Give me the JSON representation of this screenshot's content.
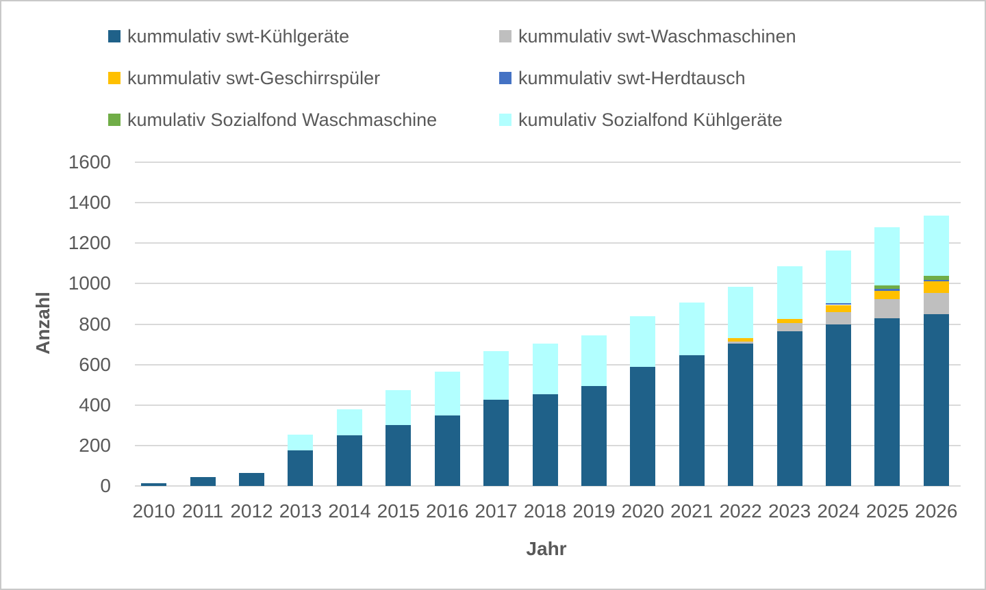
{
  "colors": {
    "background": "#ffffff",
    "frame_border": "#c9c9c9",
    "gridline": "#d9d9d9",
    "axis_text": "#595959"
  },
  "chart_data": {
    "type": "bar",
    "stacked": true,
    "title": "",
    "xlabel": "Jahr",
    "ylabel": "Anzahl",
    "ylim": [
      0,
      1600
    ],
    "yticks": [
      0,
      200,
      400,
      600,
      800,
      1000,
      1200,
      1400,
      1600
    ],
    "grid": true,
    "legend_position": "top",
    "categories": [
      "2010",
      "2011",
      "2012",
      "2013",
      "2014",
      "2015",
      "2016",
      "2017",
      "2018",
      "2019",
      "2020",
      "2021",
      "2022",
      "2023",
      "2024",
      "2025",
      "2026"
    ],
    "series": [
      {
        "name": "kummulativ swt-Kühlgeräte",
        "color": "#1F6189",
        "values": [
          15,
          45,
          65,
          175,
          250,
          300,
          350,
          425,
          455,
          495,
          590,
          645,
          705,
          765,
          800,
          830,
          850
        ]
      },
      {
        "name": "kummulativ swt-Waschmaschinen",
        "color": "#BFBFBF",
        "values": [
          0,
          0,
          0,
          0,
          0,
          0,
          0,
          0,
          0,
          0,
          0,
          0,
          10,
          40,
          60,
          95,
          105
        ]
      },
      {
        "name": "kummulativ swt-Geschirrspüler",
        "color": "#FFC000",
        "values": [
          0,
          0,
          0,
          0,
          0,
          0,
          0,
          0,
          0,
          0,
          0,
          0,
          15,
          20,
          35,
          40,
          55
        ]
      },
      {
        "name": "kummulativ swt-Herdtausch",
        "color": "#4472C4",
        "values": [
          0,
          0,
          0,
          0,
          0,
          0,
          0,
          0,
          0,
          0,
          0,
          0,
          0,
          0,
          10,
          10,
          10
        ]
      },
      {
        "name": "kumulativ Sozialfond Waschmaschine",
        "color": "#70AD47",
        "values": [
          0,
          0,
          0,
          0,
          0,
          0,
          0,
          0,
          0,
          0,
          0,
          0,
          0,
          0,
          0,
          15,
          20
        ]
      },
      {
        "name": "kumulativ Sozialfond Kühlgeräte",
        "color": "#B2FFFF",
        "values": [
          0,
          0,
          0,
          80,
          130,
          175,
          215,
          240,
          250,
          250,
          250,
          260,
          255,
          260,
          260,
          290,
          295
        ]
      }
    ]
  }
}
